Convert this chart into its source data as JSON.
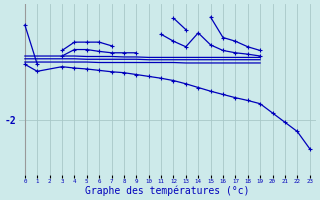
{
  "background_color": "#cdeaea",
  "grid_color": "#a8c8c8",
  "line_color": "#0000bb",
  "xlabel": "Graphe des températures (°c)",
  "xlabel_fontsize": 7,
  "ytick_label": "-2",
  "ylim": [
    -3.2,
    0.5
  ],
  "xlim": [
    -0.5,
    23.5
  ],
  "hours": [
    0,
    1,
    2,
    3,
    4,
    5,
    6,
    7,
    8,
    9,
    10,
    11,
    12,
    13,
    14,
    15,
    16,
    17,
    18,
    19,
    20,
    21,
    22,
    23
  ],
  "line1_y": [
    0.05,
    -0.8,
    null,
    -0.5,
    -0.32,
    -0.32,
    -0.32,
    -0.4,
    null,
    null,
    null,
    null,
    0.2,
    -0.05,
    null,
    0.22,
    -0.22,
    -0.3,
    -0.42,
    -0.5,
    null,
    null,
    null,
    null
  ],
  "line2_y": [
    null,
    null,
    null,
    -0.62,
    -0.48,
    -0.48,
    -0.52,
    -0.55,
    -0.55,
    -0.55,
    null,
    -0.15,
    -0.3,
    -0.42,
    -0.12,
    -0.38,
    -0.5,
    -0.55,
    -0.58,
    -0.62,
    null,
    null,
    null,
    null
  ],
  "flat1_y": [
    -0.62,
    -0.62,
    -0.62,
    -0.62,
    -0.62,
    -0.63,
    -0.63,
    -0.63,
    -0.64,
    -0.64,
    -0.65,
    -0.65,
    -0.65,
    -0.65,
    -0.65,
    -0.65,
    -0.65,
    -0.65,
    -0.65,
    -0.65,
    null,
    null,
    null,
    null
  ],
  "flat2_y": [
    -0.68,
    -0.68,
    -0.68,
    -0.68,
    -0.68,
    -0.69,
    -0.69,
    -0.69,
    -0.69,
    -0.69,
    -0.7,
    -0.7,
    -0.7,
    -0.7,
    -0.7,
    -0.7,
    -0.7,
    -0.7,
    -0.7,
    -0.7,
    null,
    null,
    null,
    null
  ],
  "flat3_y": [
    -0.75,
    -0.75,
    -0.75,
    -0.75,
    -0.75,
    -0.75,
    -0.76,
    -0.76,
    -0.76,
    -0.76,
    -0.76,
    -0.76,
    -0.76,
    -0.77,
    -0.77,
    -0.77,
    -0.77,
    -0.77,
    -0.77,
    -0.77,
    null,
    null,
    null,
    null
  ],
  "bottom_x": [
    0,
    1,
    3,
    4,
    5,
    6,
    7,
    8,
    9,
    10,
    11,
    12,
    13,
    14,
    15,
    16,
    17,
    18,
    19,
    20,
    21,
    22,
    23
  ],
  "bottom_y": [
    -0.8,
    -0.95,
    -0.85,
    -0.88,
    -0.9,
    -0.93,
    -0.96,
    -0.98,
    -1.02,
    -1.06,
    -1.1,
    -1.15,
    -1.22,
    -1.3,
    -1.38,
    -1.45,
    -1.52,
    -1.58,
    -1.65,
    -1.85,
    -2.05,
    -2.25,
    -2.62
  ]
}
